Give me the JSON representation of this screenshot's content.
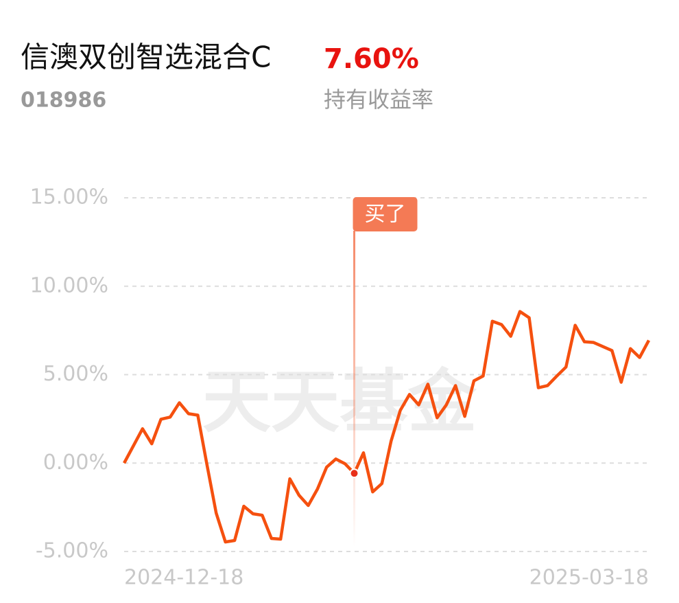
{
  "header": {
    "fund_name": "信澳双创智选混合C",
    "fund_code": "018986",
    "return_value": "7.60%",
    "return_label": "持有收益率"
  },
  "chart_data": {
    "type": "line",
    "watermark": "天天基金",
    "categories": [
      "2024-12-18",
      null,
      null,
      null,
      null,
      null,
      null,
      null,
      null,
      null,
      null,
      null,
      null,
      null,
      null,
      null,
      null,
      null,
      null,
      null,
      null,
      null,
      null,
      null,
      null,
      null,
      null,
      null,
      null,
      null,
      null,
      null,
      null,
      null,
      null,
      null,
      null,
      null,
      null,
      null,
      null,
      null,
      null,
      null,
      null,
      null,
      null,
      null,
      null,
      null,
      null,
      null,
      null,
      null,
      null,
      null,
      null,
      "2025-03-18"
    ],
    "series": [
      {
        "color": "#f5500f",
        "values": [
          0,
          0.97,
          1.94,
          1.09,
          2.48,
          2.6,
          3.41,
          2.79,
          2.71,
          -0.1,
          -2.83,
          -4.46,
          -4.38,
          -2.44,
          -2.87,
          -2.95,
          -4.26,
          -4.3,
          -0.89,
          -1.82,
          -2.4,
          -1.47,
          -0.23,
          0.23,
          -0.04,
          -0.58,
          0.58,
          -1.63,
          -1.16,
          1.24,
          2.98,
          3.88,
          3.29,
          4.46,
          2.56,
          3.29,
          4.38,
          2.64,
          4.65,
          4.92,
          8.02,
          7.83,
          7.17,
          8.57,
          8.22,
          4.26,
          4.38,
          4.92,
          5.43,
          7.79,
          6.86,
          6.82,
          6.59,
          6.36,
          4.57,
          6.47,
          5.97,
          6.94
        ]
      }
    ],
    "annotations": [
      {
        "text": "买了",
        "index": 25
      }
    ],
    "ylim": [
      -5,
      15
    ],
    "yticks": [
      {
        "value": -5,
        "label": "-5.00%"
      },
      {
        "value": 0,
        "label": "0.00%"
      },
      {
        "value": 5,
        "label": "5.00%"
      },
      {
        "value": 10,
        "label": "10.00%"
      },
      {
        "value": 15,
        "label": "15.00%"
      }
    ],
    "grid": true
  }
}
